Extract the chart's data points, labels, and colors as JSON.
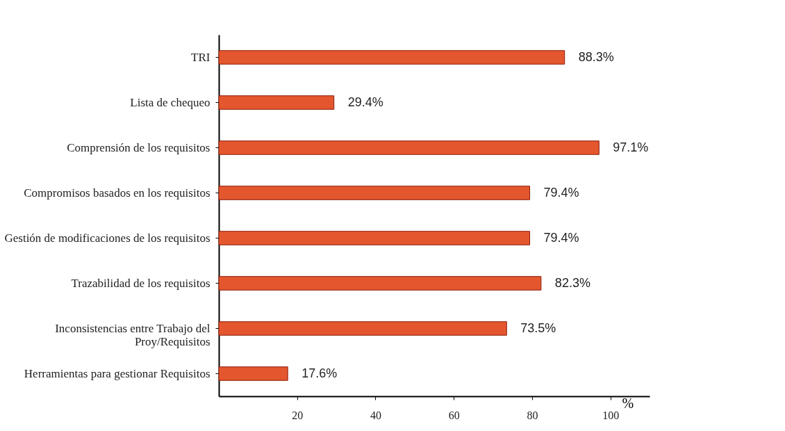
{
  "chart_data": {
    "type": "bar",
    "orientation": "horizontal",
    "categories": [
      "TRI",
      "Lista de chequeo",
      "Comprensión de  los requisitos",
      "Compromisos basados en los  requisitos",
      "Gestión de modificaciones de los requisitos",
      "Trazabilidad de los requisitos",
      "Inconsistencias entre Trabajo del\nProy/Requisitos",
      "Herramientas para gestionar Requisitos"
    ],
    "values": [
      88.3,
      29.4,
      97.1,
      79.4,
      79.4,
      82.3,
      73.5,
      17.6
    ],
    "value_labels": [
      "88.3%",
      "29.4%",
      "97.1%",
      "79.4%",
      "79.4%",
      "82.3%",
      "73.5%",
      "17.6%"
    ],
    "color": "#e4572e",
    "xlim": [
      0,
      110
    ],
    "xticks": [
      20,
      40,
      60,
      80,
      100
    ],
    "xlabel": "%",
    "grid": false
  }
}
